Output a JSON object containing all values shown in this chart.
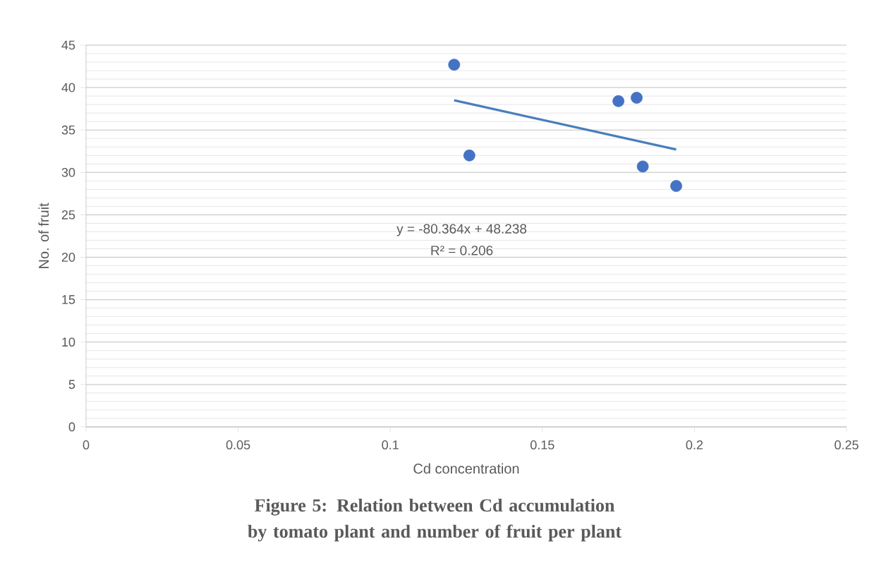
{
  "chart_data": {
    "type": "scatter",
    "xlabel": "Cd concentration",
    "ylabel": "No. of fruit",
    "annotations": [
      "y = -80.364x + 48.238",
      "R² = 0.206",
      "Figure 5: Relation between Cd accumulation by tomato plant and number of fruit per plant"
    ],
    "series": [
      {
        "color": "#4472c4",
        "marker": "circle",
        "x": [
          0.121,
          0.126,
          0.175,
          0.181,
          0.183,
          0.194
        ],
        "values": [
          42.7,
          32.0,
          38.4,
          38.8,
          30.7,
          28.4
        ]
      },
      {
        "type": "line",
        "color": "#4a7ebb",
        "marker": "none",
        "line_style": "solid",
        "x": [
          0.121,
          0.194
        ],
        "values": [
          38.5,
          32.7
        ]
      }
    ],
    "xlim": [
      0,
      0.25
    ],
    "xticks": [
      0,
      0.05,
      0.1,
      0.15,
      0.2,
      0.25
    ],
    "ylim": [
      0,
      45
    ],
    "yticks": [
      0,
      5,
      10,
      15,
      20,
      25,
      30,
      35,
      40,
      45
    ],
    "grid": "y"
  }
}
